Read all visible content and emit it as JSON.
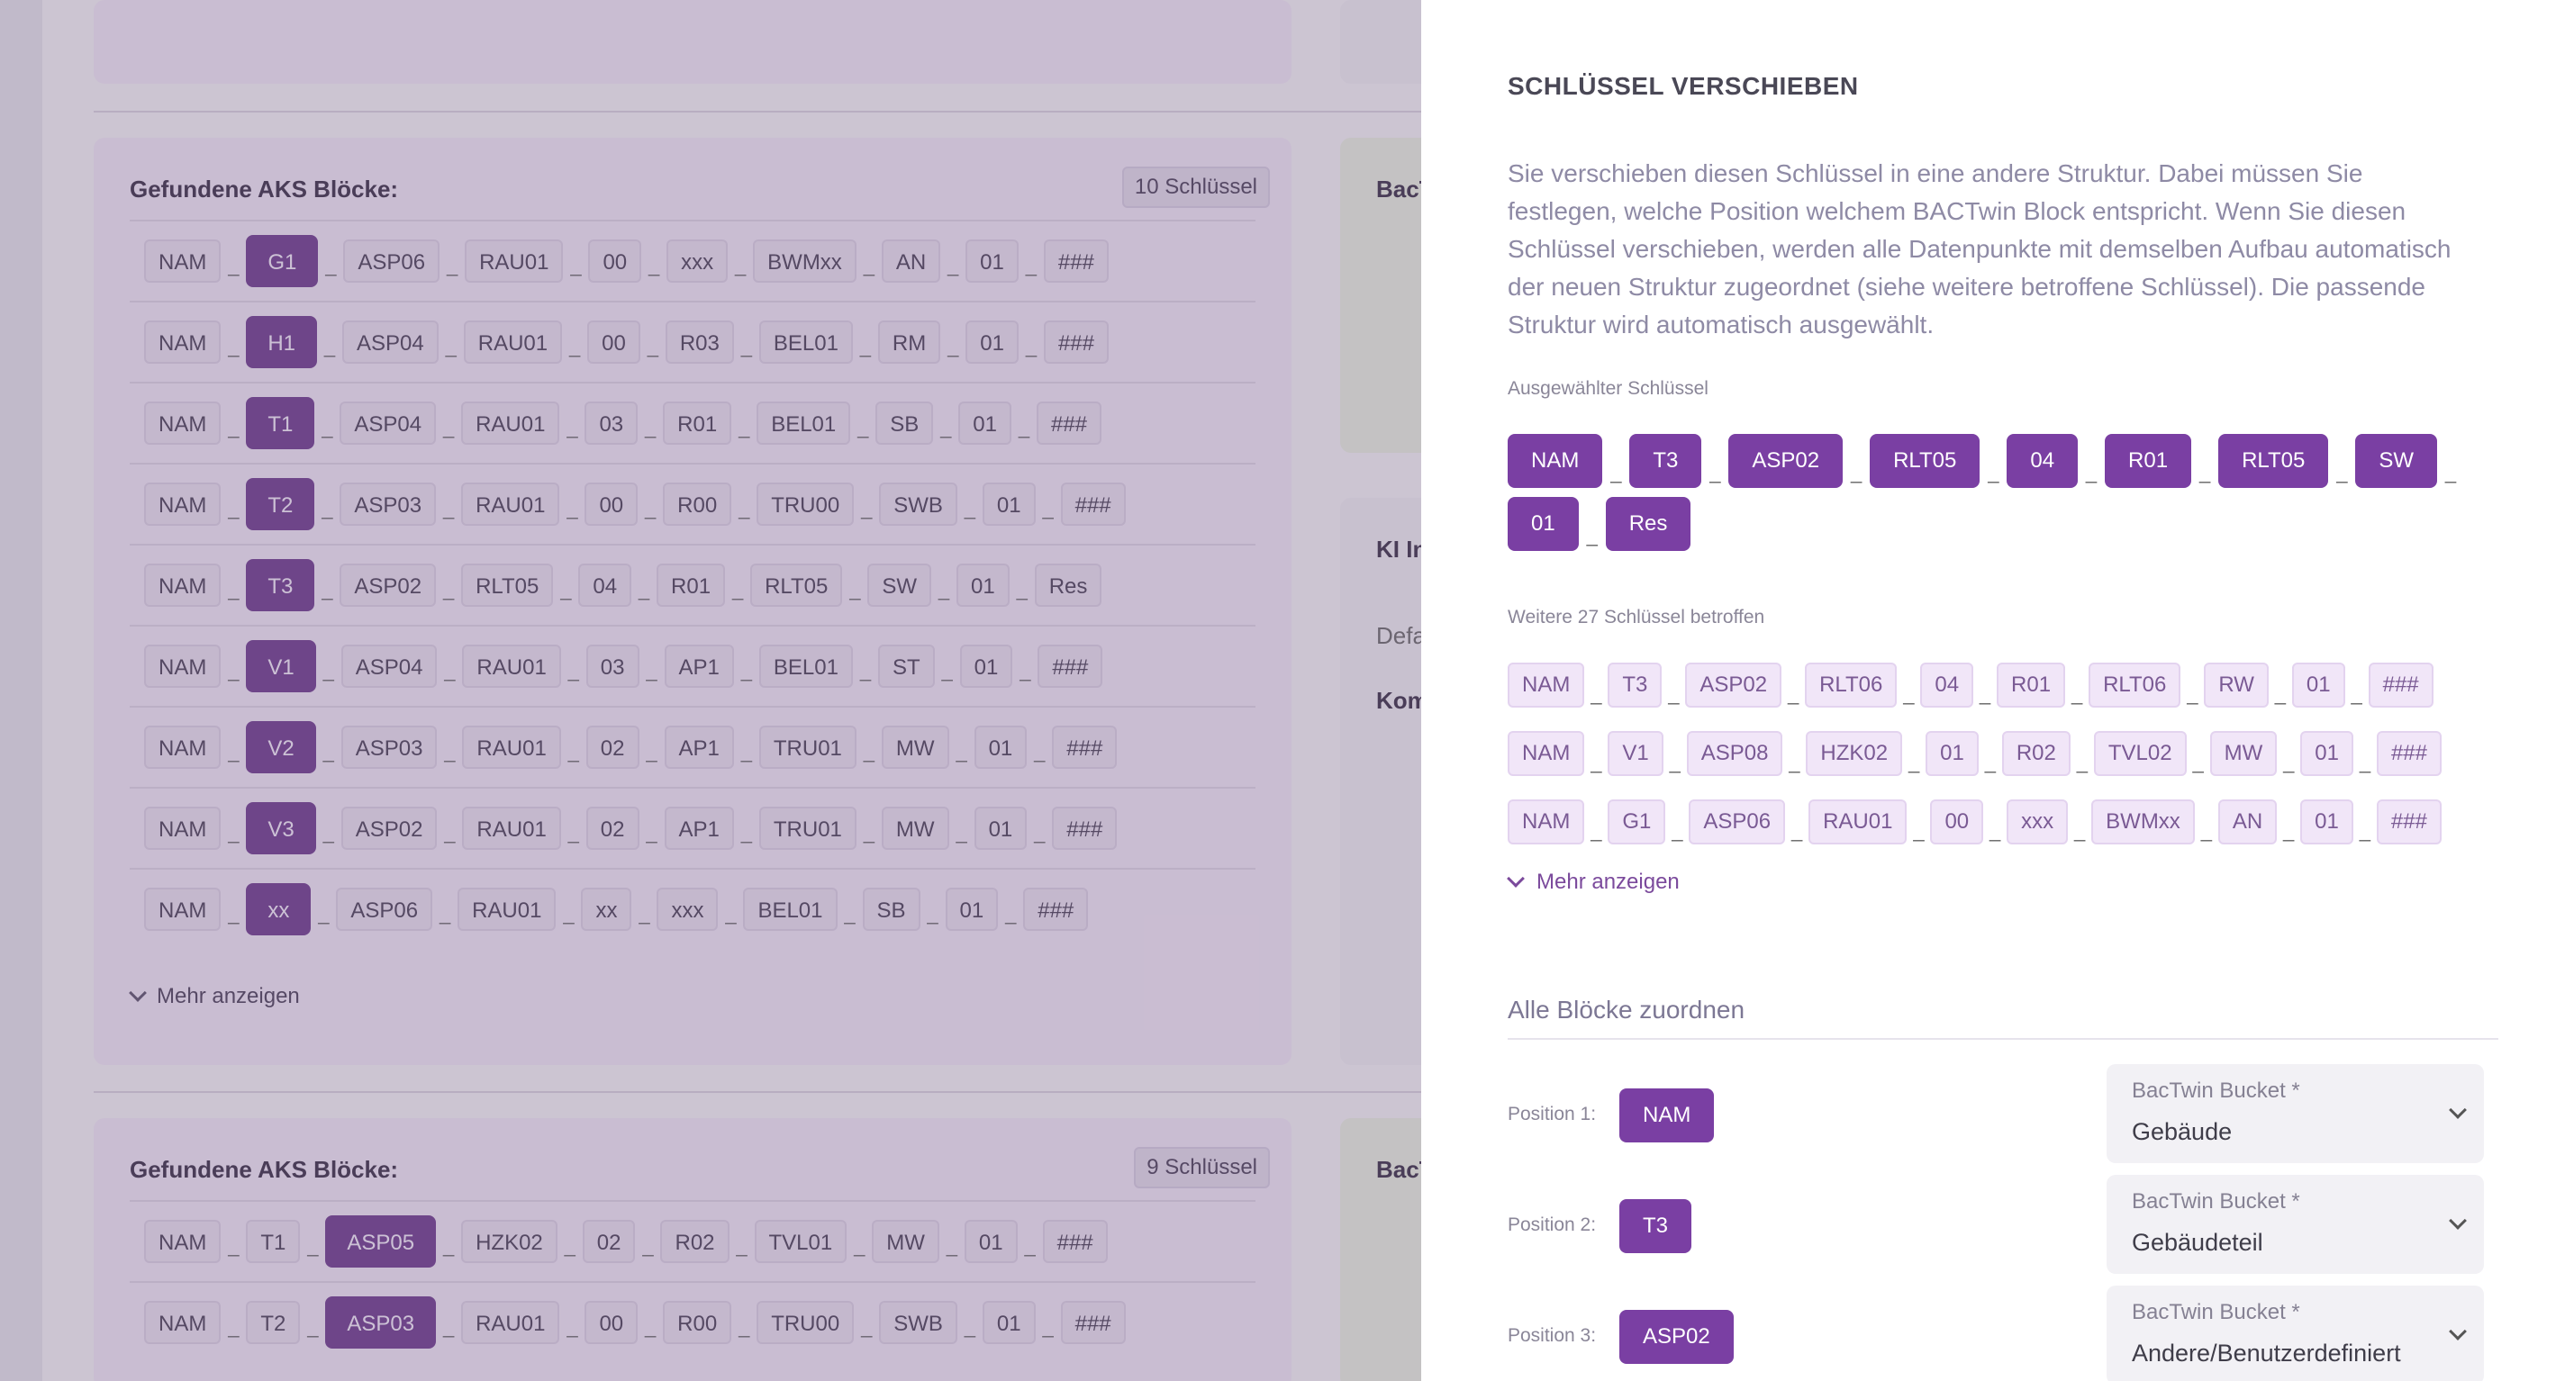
{
  "background": {
    "card_top": {
      "rows": []
    },
    "card1": {
      "title": "Gefundene AKS Blöcke:",
      "badge": "10 Schlüssel",
      "rows": [
        [
          "NAM",
          "G1",
          "ASP06",
          "RAU01",
          "00",
          "xxx",
          "BWMxx",
          "AN",
          "01",
          "###"
        ],
        [
          "NAM",
          "H1",
          "ASP04",
          "RAU01",
          "00",
          "R03",
          "BEL01",
          "RM",
          "01",
          "###"
        ],
        [
          "NAM",
          "T1",
          "ASP04",
          "RAU01",
          "03",
          "R01",
          "BEL01",
          "SB",
          "01",
          "###"
        ],
        [
          "NAM",
          "T2",
          "ASP03",
          "RAU01",
          "00",
          "R00",
          "TRU00",
          "SWB",
          "01",
          "###"
        ],
        [
          "NAM",
          "T3",
          "ASP02",
          "RLT05",
          "04",
          "R01",
          "RLT05",
          "SW",
          "01",
          "Res"
        ],
        [
          "NAM",
          "V1",
          "ASP04",
          "RAU01",
          "03",
          "AP1",
          "BEL01",
          "ST",
          "01",
          "###"
        ],
        [
          "NAM",
          "V2",
          "ASP03",
          "RAU01",
          "02",
          "AP1",
          "TRU01",
          "MW",
          "01",
          "###"
        ],
        [
          "NAM",
          "V3",
          "ASP02",
          "RAU01",
          "02",
          "AP1",
          "TRU01",
          "MW",
          "01",
          "###"
        ],
        [
          "NAM",
          "xx",
          "ASP06",
          "RAU01",
          "xx",
          "xxx",
          "BEL01",
          "SB",
          "01",
          "###"
        ]
      ],
      "highlight_index": 1,
      "more": "Mehr anzeigen"
    },
    "card2": {
      "title": "Gefundene AKS Blöcke:",
      "badge": "9 Schlüssel",
      "rows": [
        [
          "NAM",
          "T1",
          "ASP05",
          "HZK02",
          "02",
          "R02",
          "TVL01",
          "MW",
          "01",
          "###"
        ],
        [
          "NAM",
          "T2",
          "ASP03",
          "RAU01",
          "00",
          "R00",
          "TRU00",
          "SWB",
          "01",
          "###"
        ]
      ],
      "highlight_index": 2
    },
    "right_titles": [
      "BacT",
      "KI In",
      "BacT"
    ],
    "right_misc": [
      "Defa",
      "Kom",
      "+"
    ]
  },
  "drawer": {
    "title": "SCHLÜSSEL VERSCHIEBEN",
    "description": "Sie verschieben diesen Schlüssel in eine andere Struktur. Dabei müssen Sie festlegen, welche Position welchem BACTwin Block entspricht. Wenn Sie diesen Schlüssel verschieben, werden alle Datenpunkte mit demselben Aufbau automatisch der neuen Struktur zugeordnet (siehe weitere betroffene Schlüssel). Die passende Struktur wird automatisch ausgewählt.",
    "selected_caption": "Ausgewählter Schlüssel",
    "selected_key": [
      "NAM",
      "T3",
      "ASP02",
      "RLT05",
      "04",
      "R01",
      "RLT05",
      "SW",
      "01",
      "Res"
    ],
    "affected_caption": "Weitere 27 Schlüssel betroffen",
    "affected_keys": [
      [
        "NAM",
        "T3",
        "ASP02",
        "RLT06",
        "04",
        "R01",
        "RLT06",
        "RW",
        "01",
        "###"
      ],
      [
        "NAM",
        "V1",
        "ASP08",
        "HZK02",
        "01",
        "R02",
        "TVL02",
        "MW",
        "01",
        "###"
      ],
      [
        "NAM",
        "G1",
        "ASP06",
        "RAU01",
        "00",
        "xxx",
        "BWMxx",
        "AN",
        "01",
        "###"
      ]
    ],
    "more": "Mehr anzeigen",
    "assign_title": "Alle Blöcke zuordnen",
    "positions": [
      {
        "label": "Position 1:",
        "chip": "NAM",
        "select_label": "BacTwin Bucket *",
        "select_value": "Gebäude"
      },
      {
        "label": "Position 2:",
        "chip": "T3",
        "select_label": "BacTwin Bucket *",
        "select_value": "Gebäudeteil"
      },
      {
        "label": "Position 3:",
        "chip": "ASP02",
        "select_label": "BacTwin Bucket *",
        "select_value": "Andere/Benutzerdefiniert"
      }
    ]
  },
  "colors": {
    "accent": "#7a3fa3",
    "chip_light": "#f1e6f8",
    "overlay": "#5e3f73"
  }
}
